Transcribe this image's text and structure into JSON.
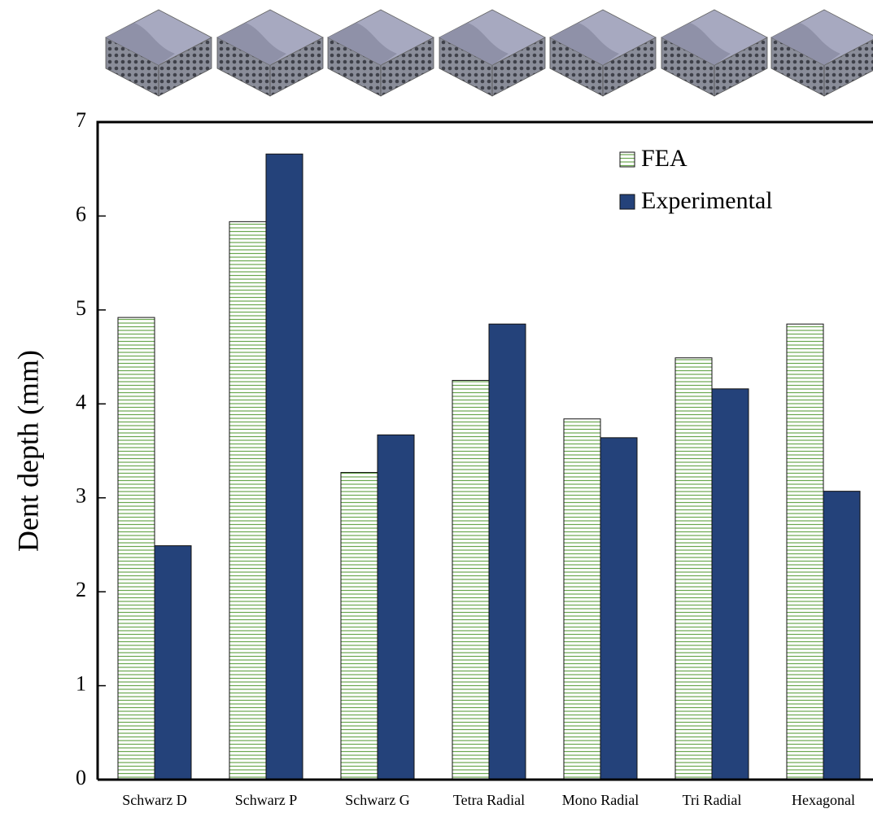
{
  "chart_data": {
    "type": "bar",
    "y_label": "Dent depth (mm)",
    "categories": [
      "Schwarz D",
      "Schwarz P",
      "Schwarz G",
      "Tetra Radial",
      "Mono Radial",
      "Tri Radial",
      "Hexagonal"
    ],
    "series": [
      {
        "name": "FEA",
        "color": "#6aa84f",
        "values": [
          4.92,
          5.94,
          3.27,
          4.25,
          3.84,
          4.49,
          4.85
        ]
      },
      {
        "name": "Experimental",
        "color": "#24427a",
        "values": [
          2.49,
          6.66,
          3.67,
          4.85,
          3.64,
          4.16,
          3.07
        ]
      }
    ],
    "ylim": [
      0,
      7
    ],
    "yticks": [
      0,
      1,
      2,
      3,
      4,
      5,
      6,
      7
    ],
    "legend": "upper-right"
  }
}
